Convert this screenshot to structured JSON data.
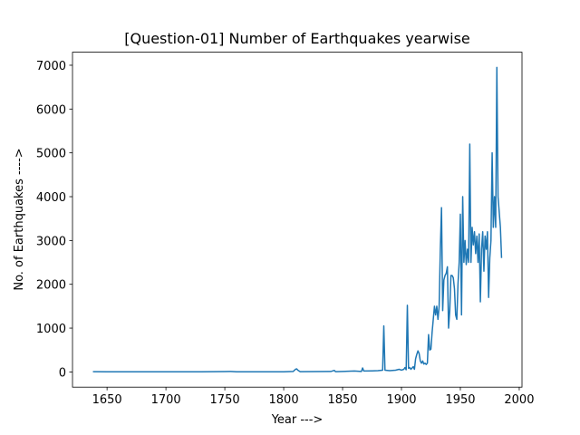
{
  "chart_data": {
    "type": "line",
    "title": "[Question-01] Number of Earthquakes yearwise",
    "x_label": "Year --->",
    "y_label": "No. of Earthquakes ---->",
    "color": "#1f77b4",
    "x": [
      1638,
      1650,
      1700,
      1730,
      1750,
      1755,
      1760,
      1800,
      1808,
      1810,
      1811,
      1812,
      1814,
      1840,
      1843,
      1844,
      1855,
      1860,
      1866,
      1867,
      1868,
      1875,
      1880,
      1884,
      1885,
      1886,
      1890,
      1895,
      1898,
      1900,
      1902,
      1903,
      1904,
      1905,
      1906,
      1907,
      1908,
      1910,
      1911,
      1912,
      1913,
      1914,
      1915,
      1916,
      1917,
      1918,
      1919,
      1920,
      1921,
      1922,
      1923,
      1924,
      1925,
      1926,
      1927,
      1928,
      1929,
      1930,
      1931,
      1932,
      1933,
      1934,
      1935,
      1936,
      1937,
      1938,
      1939,
      1940,
      1941,
      1942,
      1943,
      1944,
      1945,
      1946,
      1947,
      1948,
      1949,
      1950,
      1951,
      1952,
      1953,
      1954,
      1955,
      1956,
      1957,
      1958,
      1959,
      1960,
      1961,
      1962,
      1963,
      1964,
      1965,
      1966,
      1967,
      1968,
      1969,
      1970,
      1971,
      1972,
      1973,
      1974,
      1975,
      1976,
      1977,
      1978,
      1979,
      1980,
      1981,
      1982,
      1984,
      1985
    ],
    "values": [
      5,
      2,
      2,
      3,
      8,
      12,
      3,
      4,
      10,
      60,
      70,
      40,
      5,
      10,
      35,
      5,
      15,
      20,
      10,
      90,
      20,
      25,
      30,
      40,
      1050,
      40,
      30,
      40,
      60,
      40,
      60,
      100,
      50,
      1520,
      80,
      100,
      60,
      120,
      60,
      300,
      400,
      480,
      420,
      250,
      200,
      250,
      180,
      200,
      170,
      200,
      850,
      500,
      520,
      900,
      1200,
      1500,
      1300,
      1500,
      1200,
      1500,
      2800,
      3750,
      1400,
      2100,
      2200,
      2250,
      2400,
      1000,
      1400,
      2200,
      2200,
      2150,
      1900,
      1300,
      1200,
      2000,
      2500,
      3600,
      1300,
      4000,
      2500,
      3000,
      2450,
      2800,
      2500,
      5200,
      2500,
      3300,
      2900,
      3200,
      2700,
      3100,
      2500,
      3150,
      1600,
      2800,
      3200,
      2300,
      3100,
      2800,
      3200,
      1700,
      2600,
      3000,
      5000,
      3300,
      4000,
      3300,
      6950,
      4000,
      3300,
      2600
    ],
    "xlim": [
      1620.65,
      2002.35
    ],
    "xticks": [
      1650,
      1700,
      1750,
      1800,
      1850,
      1900,
      1950,
      2000
    ],
    "ylim": [
      -347.5,
      7297.5
    ],
    "yticks": [
      0,
      1000,
      2000,
      3000,
      4000,
      5000,
      6000,
      7000
    ]
  }
}
